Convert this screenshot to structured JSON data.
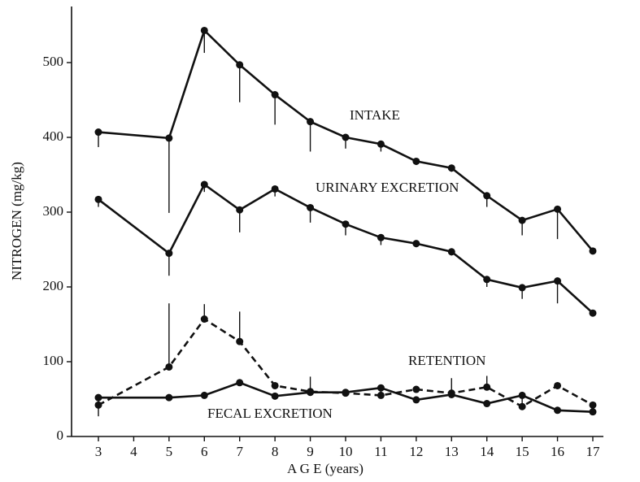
{
  "chart_data": {
    "type": "line",
    "xlabel": "A G E (years)",
    "ylabel": "NITROGEN (mg/kg)",
    "x": [
      3,
      5,
      6,
      7,
      8,
      9,
      10,
      11,
      12,
      13,
      14,
      15,
      16,
      17
    ],
    "series": [
      {
        "name": "INTAKE",
        "color": "#111111",
        "dashed": false,
        "error_direction": "down",
        "values": [
          407,
          399,
          543,
          497,
          457,
          421,
          400,
          391,
          368,
          359,
          322,
          289,
          304,
          248
        ],
        "errors": [
          20,
          100,
          30,
          50,
          40,
          40,
          15,
          10,
          5,
          5,
          15,
          20,
          40,
          0
        ]
      },
      {
        "name": "URINARY EXCRETION",
        "color": "#111111",
        "dashed": false,
        "error_direction": "down",
        "values": [
          317,
          245,
          337,
          303,
          331,
          306,
          284,
          266,
          258,
          247,
          210,
          199,
          208,
          165
        ],
        "errors": [
          10,
          30,
          10,
          30,
          10,
          20,
          15,
          10,
          5,
          5,
          10,
          15,
          30,
          0
        ]
      },
      {
        "name": "RETENTION",
        "color": "#111111",
        "dashed": true,
        "error_direction": "up",
        "values": [
          42,
          93,
          157,
          127,
          68,
          60,
          58,
          55,
          63,
          58,
          66,
          40,
          68,
          42
        ],
        "errors": [
          0,
          85,
          20,
          40,
          0,
          20,
          0,
          10,
          0,
          20,
          15,
          0,
          0,
          0
        ]
      },
      {
        "name": "FECAL EXCRETION",
        "color": "#111111",
        "dashed": false,
        "error_direction": "down",
        "values": [
          52,
          52,
          55,
          72,
          54,
          59,
          59,
          65,
          49,
          56,
          44,
          55,
          35,
          33
        ],
        "errors": [
          25,
          0,
          0,
          0,
          0,
          0,
          0,
          0,
          0,
          0,
          0,
          15,
          0,
          0
        ]
      }
    ],
    "xlim": [
      2.24,
      17.3
    ],
    "xticks": [
      3,
      4,
      5,
      6,
      7,
      8,
      9,
      10,
      11,
      12,
      13,
      14,
      15,
      16,
      17
    ],
    "ylim": [
      0,
      575
    ],
    "yticks": [
      0,
      100,
      200,
      300,
      400,
      500
    ],
    "grid": false
  }
}
